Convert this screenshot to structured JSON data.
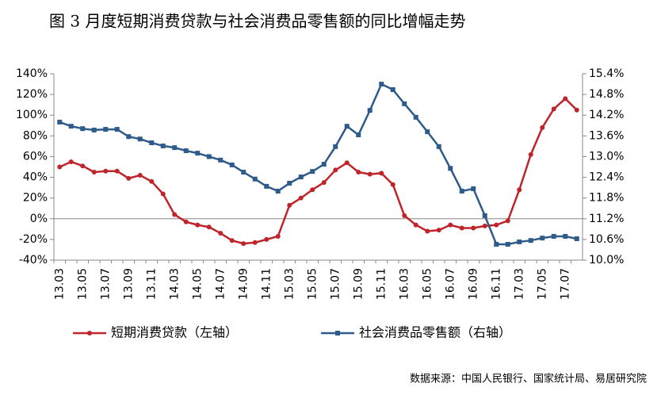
{
  "chart_data": {
    "type": "line",
    "title": "图 3   月度短期消费贷款与社会消费品零售额的同比增幅走势",
    "source": "数据来源：中国人民银行、国家统计局、易居研究院",
    "categories": [
      "13.03",
      null,
      "13.05",
      null,
      "13.07",
      null,
      "13.09",
      null,
      "13.11",
      null,
      "14.03",
      null,
      "14.05",
      null,
      "14.07",
      null,
      "14.09",
      null,
      "14.11",
      null,
      "15.03",
      null,
      "15.05",
      null,
      "15.07",
      null,
      "15.09",
      null,
      "15.11",
      null,
      "16.03",
      null,
      "16.05",
      null,
      "16.07",
      null,
      "16.09",
      null,
      "16.11",
      null,
      "17.03",
      null,
      "17.05",
      null,
      "17.07",
      null
    ],
    "series": [
      {
        "name": "短期消费贷款（左轴）",
        "color": "#c0242b",
        "marker": "circle",
        "values": [
          50,
          55,
          51,
          45,
          46,
          46,
          39,
          42,
          36,
          24,
          4,
          -3,
          -6,
          -8,
          -14,
          -21,
          -24,
          -23,
          -20,
          -17,
          13,
          20,
          28,
          35,
          47,
          54,
          45,
          43,
          44,
          33,
          3,
          -6,
          -12,
          -11,
          -6,
          -9,
          -9,
          -7,
          -6,
          -2,
          28,
          62,
          88,
          106,
          116,
          105
        ]
      },
      {
        "name": "社会消费品零售额（右轴）",
        "color": "#2e5b8a",
        "marker": "square",
        "axis": "y2",
        "values": [
          14.0,
          13.88,
          13.81,
          13.77,
          13.79,
          13.79,
          13.58,
          13.51,
          13.4,
          13.31,
          13.26,
          13.17,
          13.1,
          13.0,
          12.9,
          12.76,
          12.55,
          12.35,
          12.14,
          12.0,
          12.23,
          12.41,
          12.57,
          12.78,
          13.29,
          13.88,
          13.63,
          14.34,
          15.1,
          14.94,
          14.53,
          14.14,
          13.72,
          13.29,
          12.66,
          12.0,
          12.07,
          11.29,
          10.46,
          10.46,
          10.53,
          10.57,
          10.64,
          10.69,
          10.69,
          10.62
        ]
      }
    ],
    "ylim": [
      -40,
      140
    ],
    "yticks": [
      {
        "value": -40,
        "label": "-40%"
      },
      {
        "value": -20,
        "label": "-20%"
      },
      {
        "value": 0,
        "label": "0%"
      },
      {
        "value": 20,
        "label": "20%"
      },
      {
        "value": 40,
        "label": "40%"
      },
      {
        "value": 60,
        "label": "60%"
      },
      {
        "value": 80,
        "label": "80%"
      },
      {
        "value": 100,
        "label": "100%"
      },
      {
        "value": 120,
        "label": "120%"
      },
      {
        "value": 140,
        "label": "140%"
      }
    ],
    "y2lim": [
      10.0,
      15.4
    ],
    "y2ticks": [
      {
        "value": 10.0,
        "label": "10.0%"
      },
      {
        "value": 10.6,
        "label": "10.6%"
      },
      {
        "value": 11.2,
        "label": "11.2%"
      },
      {
        "value": 11.8,
        "label": "11.8%"
      },
      {
        "value": 12.4,
        "label": "12.4%"
      },
      {
        "value": 13.0,
        "label": "13.0%"
      },
      {
        "value": 13.6,
        "label": "13.6%"
      },
      {
        "value": 14.2,
        "label": "14.2%"
      },
      {
        "value": 14.8,
        "label": "14.8%"
      },
      {
        "value": 15.4,
        "label": "15.4%"
      }
    ],
    "grid": false
  }
}
